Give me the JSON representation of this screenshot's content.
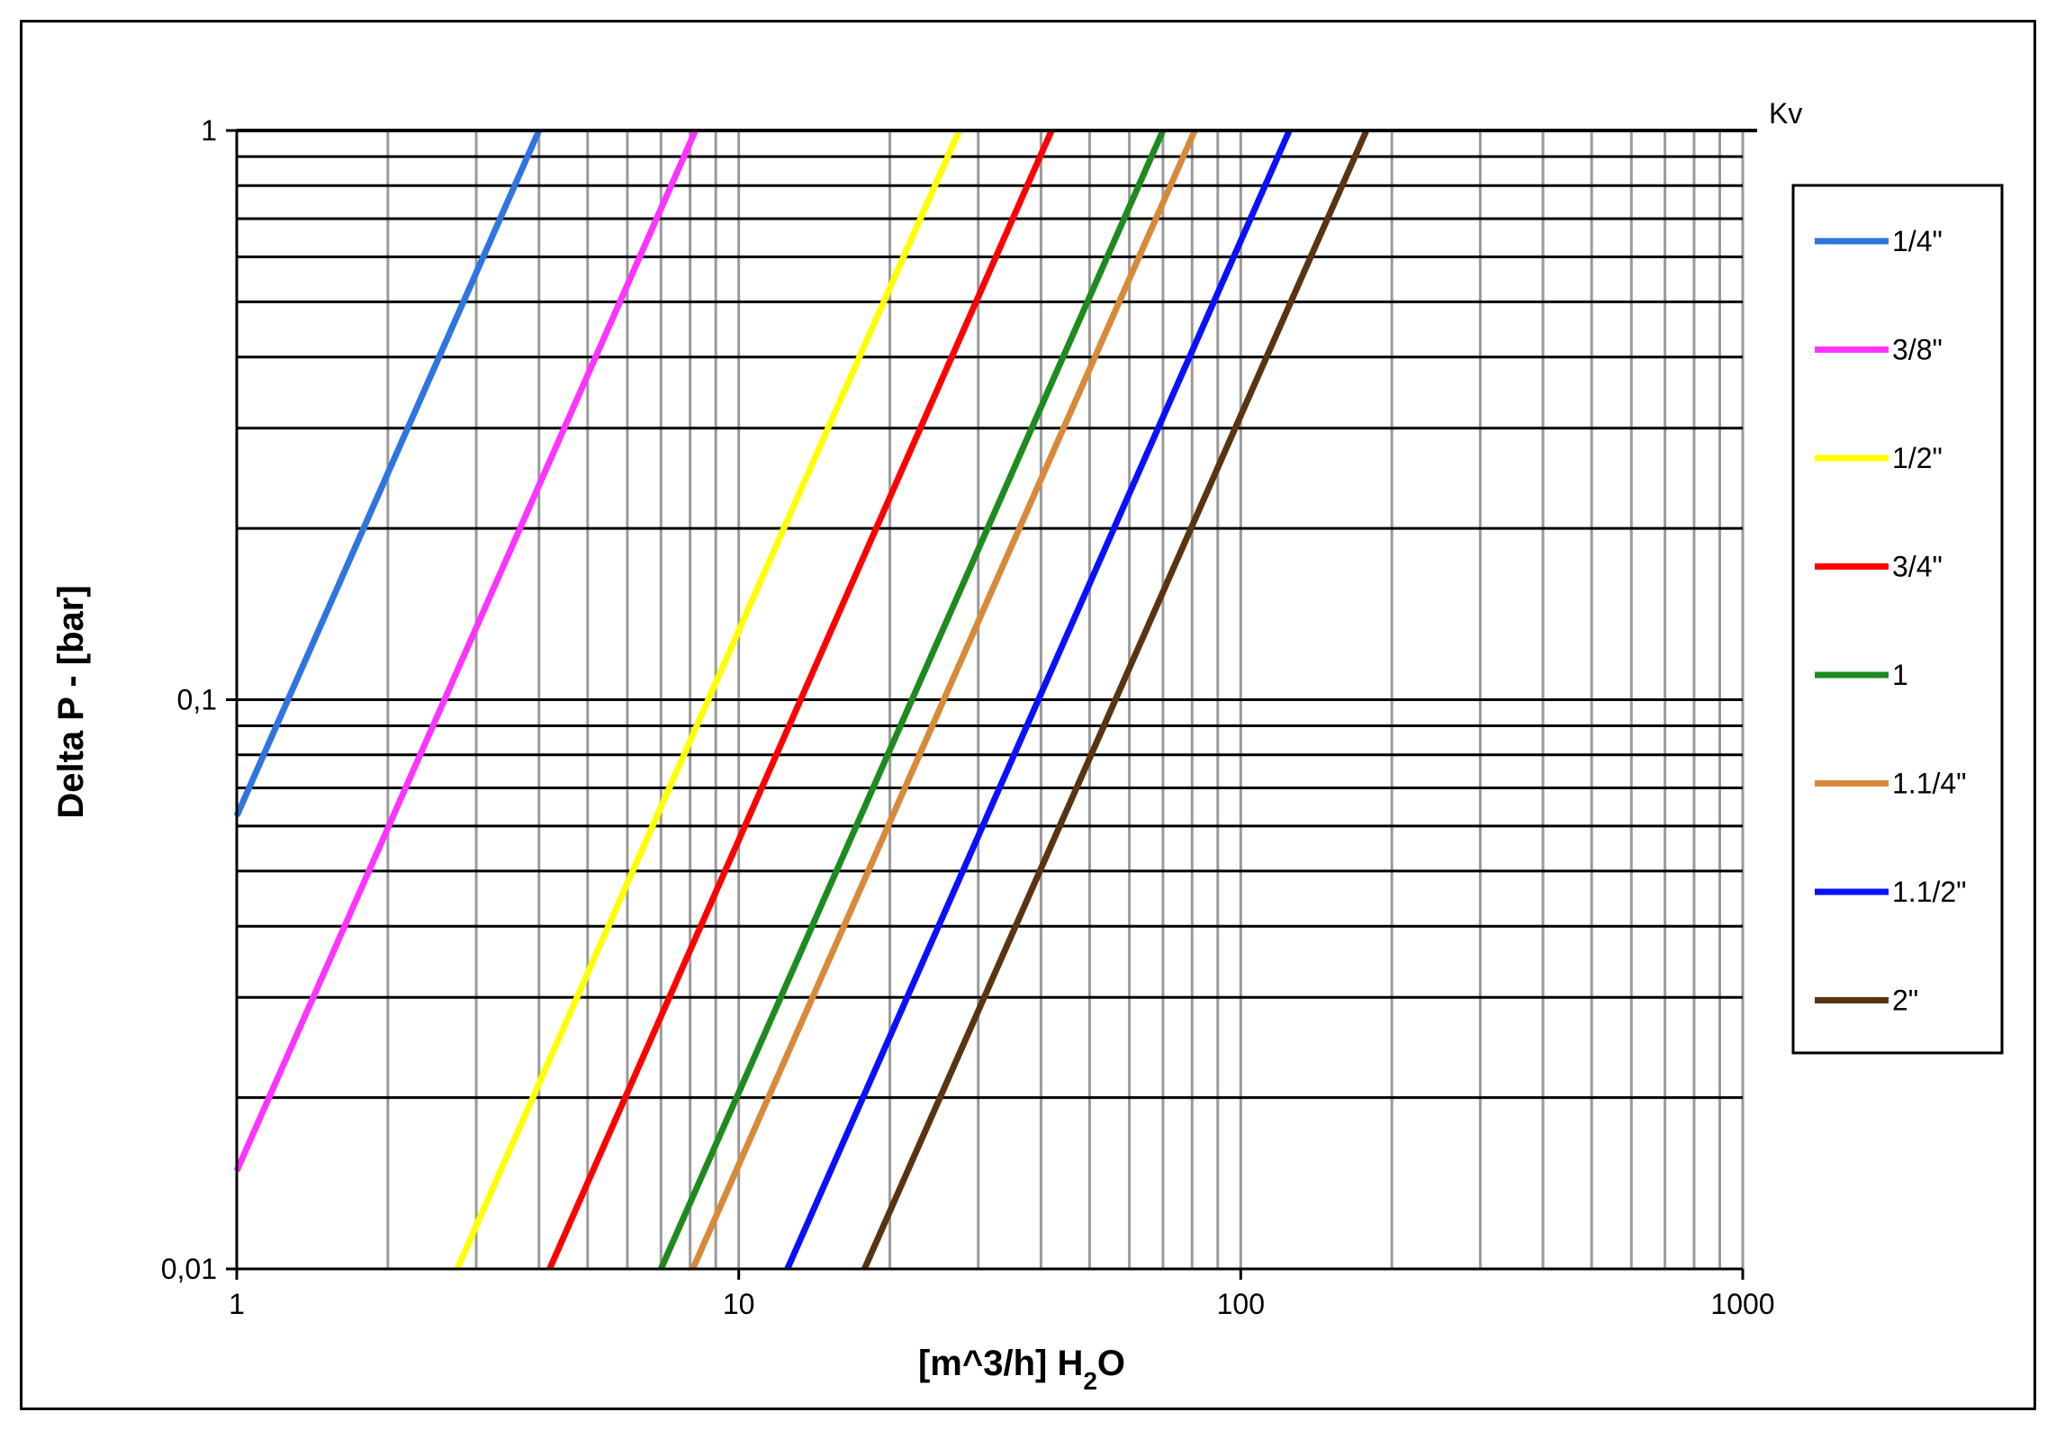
{
  "chart_data": {
    "type": "line",
    "xlabel": "[m^3/h] H",
    "xlabel_subscript": "2",
    "xlabel_suffix": "O",
    "ylabel": "Delta P - [bar]",
    "corner_label": "Kv",
    "x_scale": "log",
    "y_scale": "log",
    "xlim": [
      1,
      1000
    ],
    "ylim": [
      0.01,
      1
    ],
    "x_ticks": [
      {
        "value": 1,
        "label": "1"
      },
      {
        "value": 10,
        "label": "10"
      },
      {
        "value": 100,
        "label": "100"
      },
      {
        "value": 1000,
        "label": "1000"
      }
    ],
    "y_ticks": [
      {
        "value": 0.01,
        "label": "0,01"
      },
      {
        "value": 0.1,
        "label": "0,1"
      },
      {
        "value": 1,
        "label": "1"
      }
    ],
    "grid": true,
    "legend_position": "right",
    "series": [
      {
        "name": "1/4\"",
        "color": "#2E75E0",
        "kv": 4.0
      },
      {
        "name": "3/8\"",
        "color": "#FF33FF",
        "kv": 8.2
      },
      {
        "name": "1/2\"",
        "color": "#FFFF00",
        "kv": 27.5
      },
      {
        "name": "3/4\"",
        "color": "#FF0000",
        "kv": 42
      },
      {
        "name": "1",
        "color": "#1E8B1E",
        "kv": 70
      },
      {
        "name": "1.1/4\"",
        "color": "#D9893A",
        "kv": 81
      },
      {
        "name": "1.1/2\"",
        "color": "#0A10FF",
        "kv": 125
      },
      {
        "name": "2\"",
        "color": "#5A3412",
        "kv": 178
      }
    ]
  }
}
